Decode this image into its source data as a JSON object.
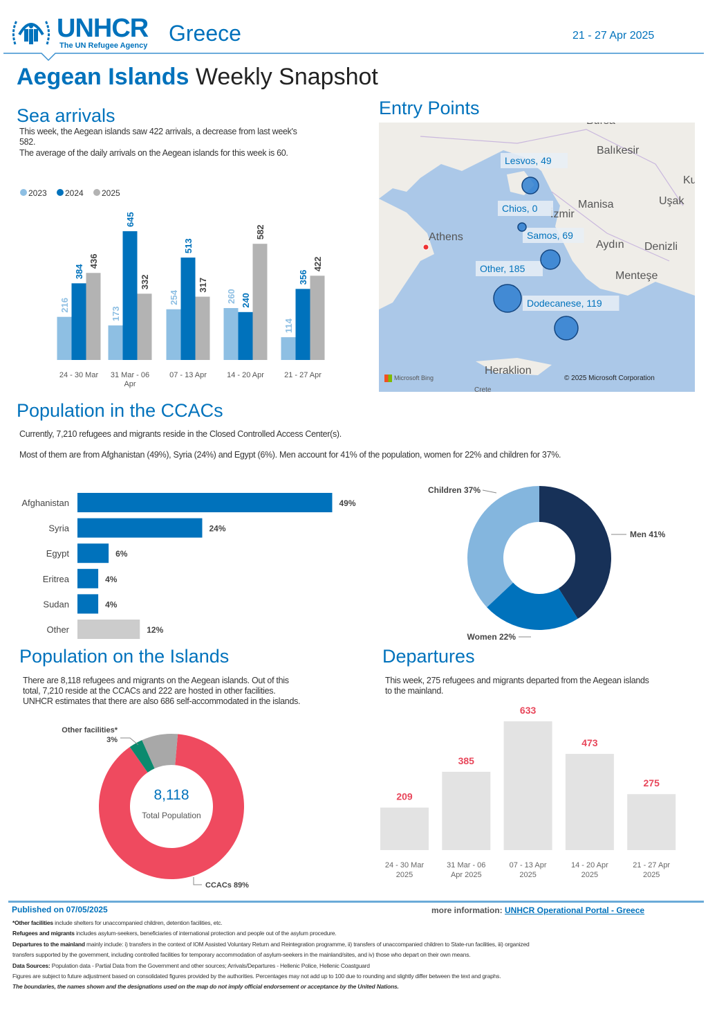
{
  "header": {
    "org_name": "UNHCR",
    "org_tagline": "The UN Refugee Agency",
    "country": "Greece",
    "date_range": "21 - 27 Apr 2025",
    "title_bold": "Aegean Islands",
    "title_rest": "Weekly Snapshot"
  },
  "sea_arrivals": {
    "heading": "Sea arrivals",
    "text1": "This week, the Aegean islands saw 422 arrivals, a decrease from last week's",
    "text1b": "582.",
    "text2": "The average of the daily arrivals on the Aegean islands for this week is 60."
  },
  "entry_points": {
    "heading": "Entry Points",
    "places": [
      "Bursa",
      "Balıkesir",
      "Manisa",
      "Uşak",
      "Ku",
      "İzmir",
      "Athens",
      "Aydın",
      "Denizli",
      "Menteşe",
      "Heraklion",
      "Crete"
    ],
    "points": [
      {
        "label": "Lesvos, 49",
        "value": 49
      },
      {
        "label": "Chios, 0",
        "value": 0
      },
      {
        "label": "Samos, 69",
        "value": 69
      },
      {
        "label": "Other, 185",
        "value": 185
      },
      {
        "label": "Dodecanese, 119",
        "value": 119
      }
    ],
    "map_credit_left": "Microsoft Bing",
    "map_credit_right": "© 2025 Microsoft Corporation"
  },
  "ccac": {
    "heading": "Population in the CCACs",
    "text1": "Currently, 7,210 refugees and migrants reside in the Closed Controlled Access Center(s).",
    "text2": "Most of them are from Afghanistan (49%), Syria (24%) and Egypt (6%). Men account for 41% of the population, women for 22% and children for 37%."
  },
  "islands": {
    "heading": "Population on the Islands",
    "text1": "There are 8,118 refugees and migrants on the Aegean islands. Out of this",
    "text2": "total, 7,210 reside at the CCACs and 222 are hosted in other facilities.",
    "text3": "UNHCR estimates that there are also 686 self-accommodated in the islands.",
    "center_value": "8,118",
    "center_label": "Total Population"
  },
  "departures": {
    "heading": "Departures",
    "text1": "This week, 275 refugees and migrants departed from the Aegean islands",
    "text2": "to the mainland."
  },
  "footer": {
    "published": "Published on 07/05/2025",
    "more_info_label": "more information:",
    "more_info_link": "UNHCR Operational Portal - Greece",
    "note1_bold": "*Other facilities",
    "note1": " include shelters for unaccompanied children, detention facilities, etc.",
    "note2_bold": "Refugees and migrants",
    "note2": " includes asylum-seekers, beneficiaries of international protection and people out of the asylum procedure.",
    "note3_bold": "Departures to the mainland",
    "note3": " mainly include: i) transfers in the context of IOM Assisted Voluntary Return and Reintegration programme, ii) transfers of unaccompanied children to State-run facilities, iii) organized",
    "note3b": "transfers supported by the government, including controlled facilities for temporary accommodation of asylum-seekers in the mainland/sites, and iv) those who depart on their own means.",
    "note4_bold": "Data Sources:",
    "note4": " Population data - Partial Data from the Government and other sources; Arrivals/Departures - Hellenic Police, Hellenic Coastguard",
    "note5": "Figures are subject to future adjustment based on consolidated figures provided by the authorities. Percentages may not add up to 100 due to rounding and slightly differ between the text and graphs.",
    "note6": "The boundaries, the names shown and the designations used on the map do not imply official endorsement or acceptance by the United Nations."
  },
  "chart_data": [
    {
      "type": "bar",
      "title": "Sea arrivals",
      "categories": [
        "24 - 30 Mar",
        "31 Mar - 06 Apr",
        "07 - 13 Apr",
        "14 - 20 Apr",
        "21 - 27 Apr"
      ],
      "series": [
        {
          "name": "2023",
          "color": "#8ebfe3",
          "values": [
            216,
            173,
            254,
            260,
            114
          ]
        },
        {
          "name": "2024",
          "color": "#0072bc",
          "values": [
            384,
            645,
            513,
            240,
            356
          ]
        },
        {
          "name": "2025",
          "color": "#b3b3b3",
          "values": [
            436,
            332,
            317,
            582,
            422
          ]
        }
      ]
    },
    {
      "type": "bar",
      "orientation": "horizontal",
      "title": "Population by nationality",
      "categories": [
        "Afghanistan",
        "Syria",
        "Egypt",
        "Eritrea",
        "Sudan",
        "Other"
      ],
      "values": [
        49,
        24,
        6,
        4,
        4,
        12
      ],
      "labels": [
        "49%",
        "24%",
        "6%",
        "4%",
        "4%",
        "12%"
      ],
      "colors": [
        "#0072bc",
        "#0072bc",
        "#0072bc",
        "#0072bc",
        "#0072bc",
        "#cccccc"
      ]
    },
    {
      "type": "pie",
      "title": "Population by gender/age",
      "slices": [
        {
          "name": "Men",
          "value": 41,
          "label": "Men 41%",
          "color": "#173158"
        },
        {
          "name": "Women",
          "value": 22,
          "label": "Women 22%",
          "color": "#0072bc"
        },
        {
          "name": "Children",
          "value": 37,
          "label": "Children 37%",
          "color": "#84b6de"
        }
      ]
    },
    {
      "type": "pie",
      "title": "Population on the Islands",
      "slices": [
        {
          "name": "CCACs",
          "value": 89,
          "label": "CCACs 89%",
          "color": "#ef4a5f"
        },
        {
          "name": "Other facilities*",
          "value": 3,
          "label": "3%",
          "color": "#0b8a6e"
        },
        {
          "name": "Self-accommodated",
          "value": 8,
          "label": "",
          "color": "#a8a8a8"
        }
      ],
      "label_other": "Other facilities*"
    },
    {
      "type": "bar",
      "title": "Departures",
      "categories": [
        "24 - 30 Mar 2025",
        "31 Mar - 06 Apr 2025",
        "07 - 13 Apr 2025",
        "14 - 20 Apr 2025",
        "21 - 27 Apr 2025"
      ],
      "values": [
        209,
        385,
        633,
        473,
        275
      ]
    }
  ]
}
